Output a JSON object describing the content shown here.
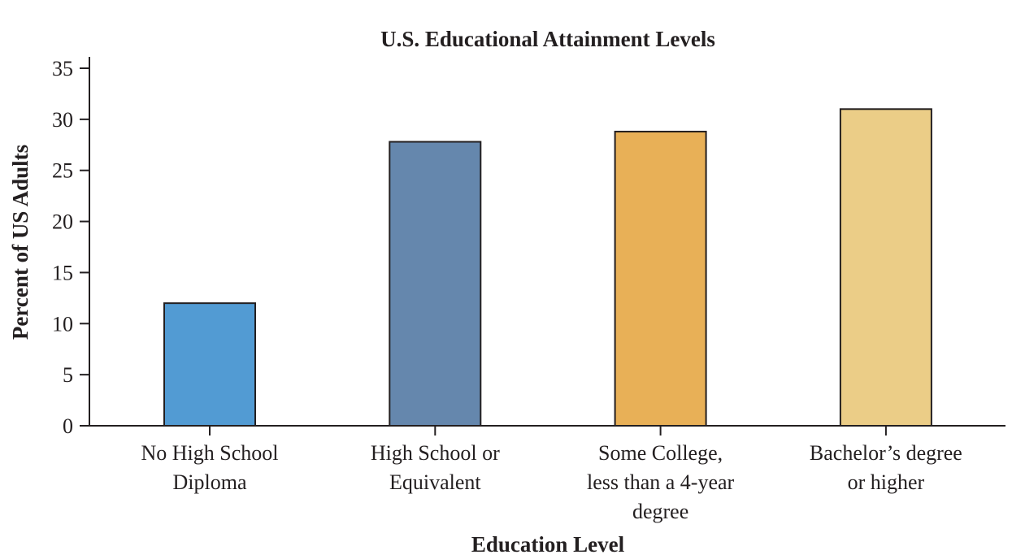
{
  "chart_data": {
    "type": "bar",
    "title": "U.S. Educational Attainment Levels",
    "xlabel": "Education Level",
    "ylabel": "Percent of US Adults",
    "categories": [
      [
        "No High School",
        "Diploma"
      ],
      [
        "High School or",
        "Equivalent"
      ],
      [
        "Some College,",
        "less than a 4-year",
        "degree"
      ],
      [
        "Bachelor’s degree",
        "or higher"
      ]
    ],
    "values": [
      12,
      27.8,
      28.8,
      31
    ],
    "colors": [
      "#529bd3",
      "#6587ad",
      "#e8b057",
      "#ebcd87"
    ],
    "ylim": [
      0,
      35
    ],
    "yticks": [
      0,
      5,
      10,
      15,
      20,
      25,
      30,
      35
    ],
    "grid": false,
    "legend": "none"
  }
}
